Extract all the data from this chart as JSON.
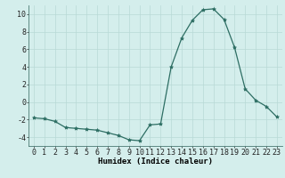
{
  "x": [
    0,
    1,
    2,
    3,
    4,
    5,
    6,
    7,
    8,
    9,
    10,
    11,
    12,
    13,
    14,
    15,
    16,
    17,
    18,
    19,
    20,
    21,
    22,
    23
  ],
  "y": [
    -1.8,
    -1.9,
    -2.2,
    -2.9,
    -3.0,
    -3.1,
    -3.2,
    -3.5,
    -3.8,
    -4.3,
    -4.4,
    -2.6,
    -2.5,
    4.0,
    7.3,
    9.3,
    10.5,
    10.6,
    9.4,
    6.2,
    1.5,
    0.2,
    -0.5,
    -1.7
  ],
  "line_color": "#2d6e63",
  "marker": "*",
  "marker_size": 3,
  "bg_color": "#d4eeec",
  "grid_color": "#b8d9d6",
  "xlabel": "Humidex (Indice chaleur)",
  "xlim": [
    -0.5,
    23.5
  ],
  "ylim": [
    -5,
    11
  ],
  "yticks": [
    -4,
    -2,
    0,
    2,
    4,
    6,
    8,
    10
  ],
  "xticks": [
    0,
    1,
    2,
    3,
    4,
    5,
    6,
    7,
    8,
    9,
    10,
    11,
    12,
    13,
    14,
    15,
    16,
    17,
    18,
    19,
    20,
    21,
    22,
    23
  ],
  "xlabel_fontsize": 6.5,
  "tick_fontsize": 6.0,
  "linewidth": 0.9
}
